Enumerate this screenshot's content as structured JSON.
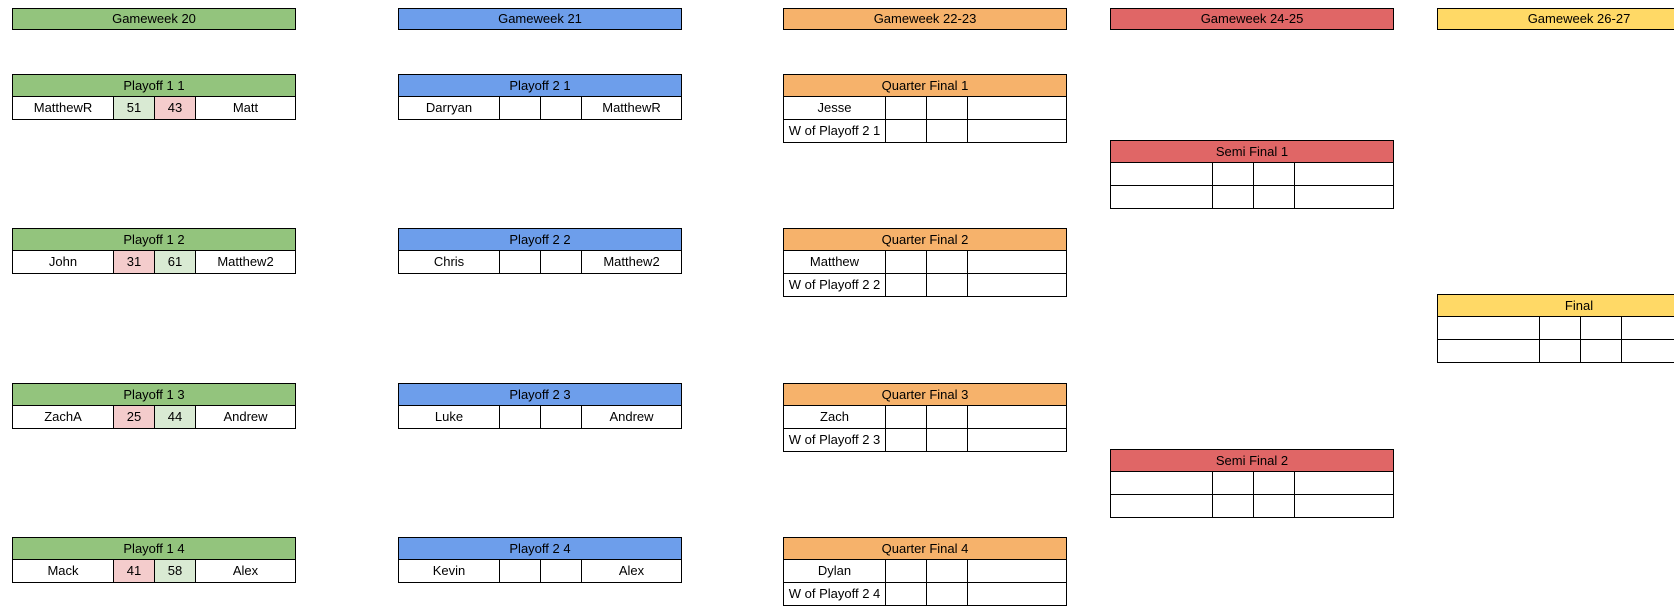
{
  "colors": {
    "gw20": "#93c47d",
    "gw21": "#6d9eeb",
    "gw22": "#f6b26b",
    "gw24": "#e06666",
    "gw26": "#ffd966",
    "win": "#d9ead3",
    "loss": "#f4cccc"
  },
  "columns": [
    {
      "header": "Gameweek 20",
      "color": "gw20",
      "type": "h2h",
      "matches": [
        {
          "title": "Playoff 1 1",
          "home": "MatthewR",
          "home_score": "51",
          "away_score": "43",
          "away": "Matt",
          "result": [
            "win",
            "loss"
          ]
        },
        {
          "title": "Playoff 1 2",
          "home": "John",
          "home_score": "31",
          "away_score": "61",
          "away": "Matthew2",
          "result": [
            "loss",
            "win"
          ]
        },
        {
          "title": "Playoff 1 3",
          "home": "ZachA",
          "home_score": "25",
          "away_score": "44",
          "away": "Andrew",
          "result": [
            "loss",
            "win"
          ]
        },
        {
          "title": "Playoff 1 4",
          "home": "Mack",
          "home_score": "41",
          "away_score": "58",
          "away": "Alex",
          "result": [
            "loss",
            "win"
          ]
        }
      ]
    },
    {
      "header": "Gameweek 21",
      "color": "gw21",
      "type": "h2h",
      "matches": [
        {
          "title": "Playoff 2 1",
          "home": "Darryan",
          "home_score": "",
          "away_score": "",
          "away": "MatthewR"
        },
        {
          "title": "Playoff 2 2",
          "home": "Chris",
          "home_score": "",
          "away_score": "",
          "away": "Matthew2"
        },
        {
          "title": "Playoff 2 3",
          "home": "Luke",
          "home_score": "",
          "away_score": "",
          "away": "Andrew"
        },
        {
          "title": "Playoff 2 4",
          "home": "Kevin",
          "home_score": "",
          "away_score": "",
          "away": "Alex"
        }
      ]
    },
    {
      "header": "Gameweek 22-23",
      "color": "gw22",
      "type": "two-leg",
      "matches": [
        {
          "title": "Quarter Final 1",
          "team1": "Jesse",
          "team2": "W of Playoff 2 1"
        },
        {
          "title": "Quarter Final 2",
          "team1": "Matthew",
          "team2": "W of Playoff 2 2"
        },
        {
          "title": "Quarter Final 3",
          "team1": "Zach",
          "team2": "W of Playoff 2 3"
        },
        {
          "title": "Quarter Final 4",
          "team1": "Dylan",
          "team2": "W of Playoff 2 4"
        }
      ]
    },
    {
      "header": "Gameweek 24-25",
      "color": "gw24",
      "type": "two-leg",
      "matches": [
        {
          "title": "Semi Final 1",
          "team1": "",
          "team2": ""
        },
        {
          "title": "Semi Final 2",
          "team1": "",
          "team2": ""
        }
      ]
    },
    {
      "header": "Gameweek 26-27",
      "color": "gw26",
      "type": "two-leg",
      "matches": [
        {
          "title": "Final",
          "team1": "",
          "team2": ""
        }
      ]
    }
  ]
}
